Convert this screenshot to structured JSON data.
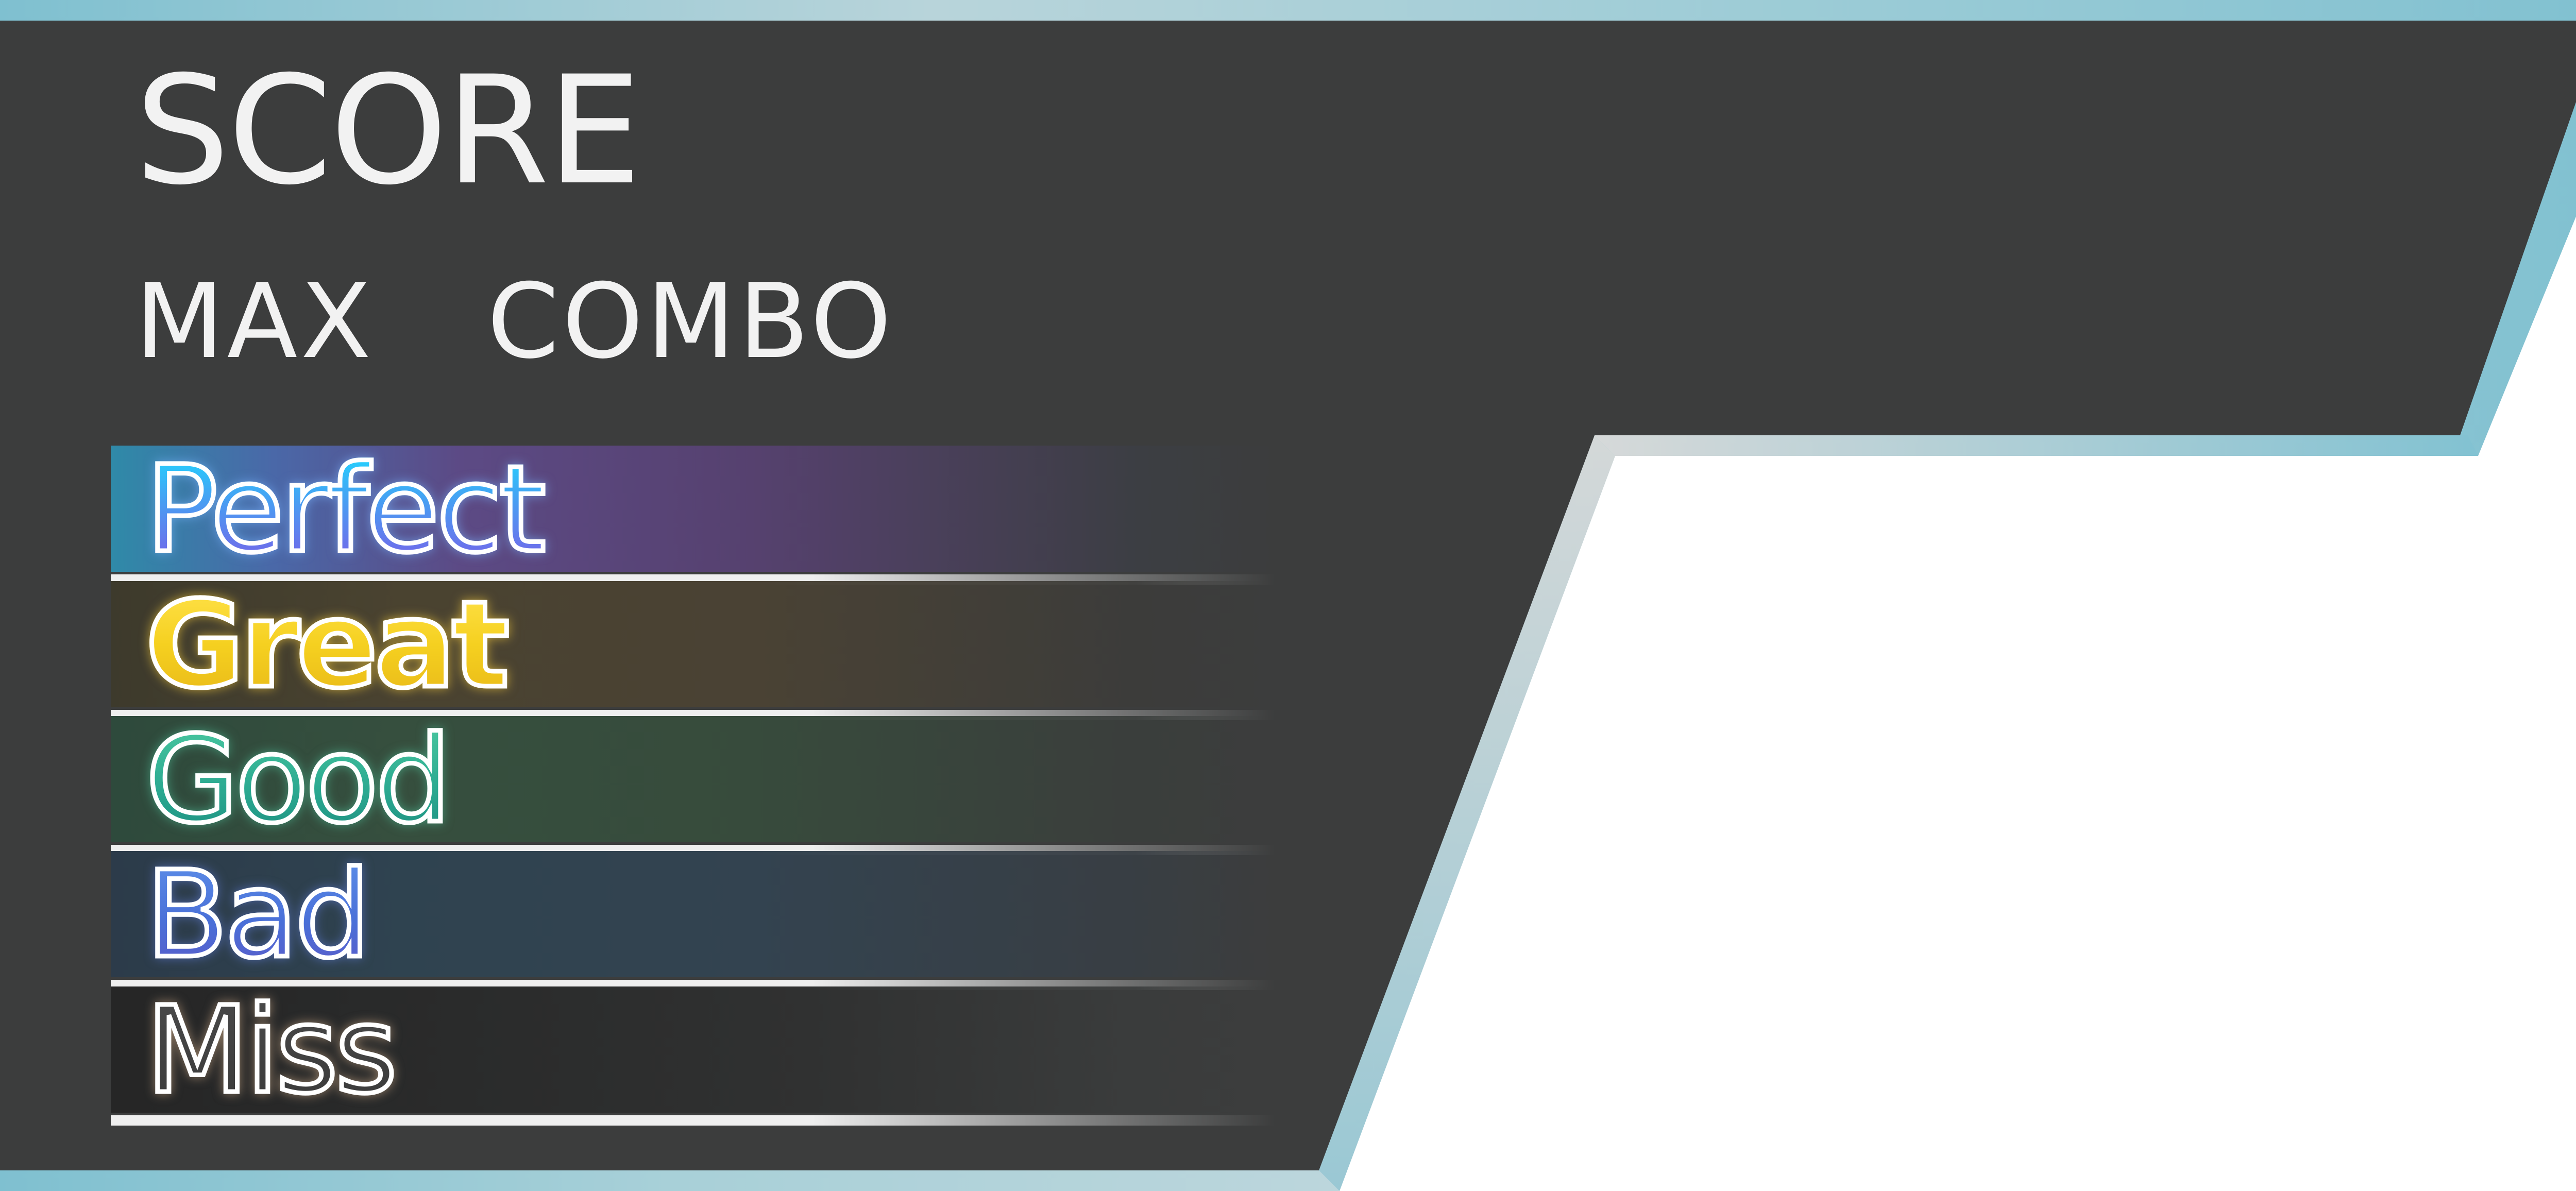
{
  "result_panel": {
    "score_label": "SCORE",
    "max_combo_label": "MAX  COMBO",
    "judgements": [
      {
        "label": "Perfect"
      },
      {
        "label": "Great"
      },
      {
        "label": "Good"
      },
      {
        "label": "Bad"
      },
      {
        "label": "Miss"
      }
    ]
  },
  "colors": {
    "panel_background": "#3c3d3d",
    "frame_accent": "#8ac4d4",
    "frame_light": "#d8dcdc",
    "perfect": "#4a9cf2",
    "great": "#f5d020",
    "good": "#2aa890",
    "bad": "#4a70d8",
    "miss": "#3a3a3a"
  }
}
